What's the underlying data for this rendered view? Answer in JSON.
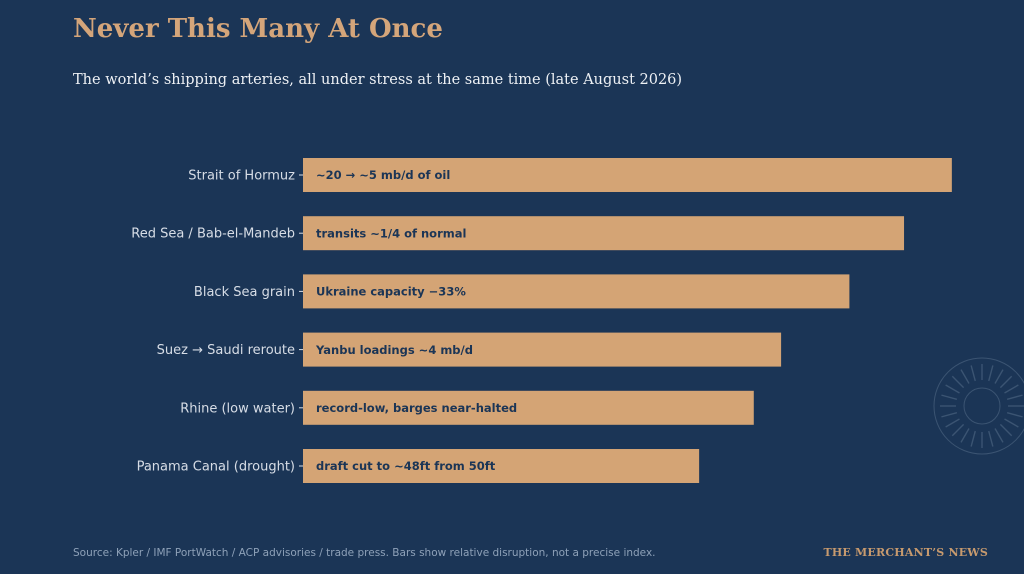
{
  "header": {
    "title": "Never This Many At Once",
    "subtitle": "The world’s shipping arteries, all under stress at the same time (late August 2026)"
  },
  "footer": {
    "source": "Source: Kpler / IMF PortWatch / ACP advisories / trade press. Bars show relative disruption, not a precise index.",
    "brand": "THE MERCHANT’S NEWS"
  },
  "colors": {
    "background": "#1b3556",
    "bar": "#d4a475",
    "bar_text": "#1b3556",
    "category_text": "#d7dde6"
  },
  "chart_data": {
    "type": "bar",
    "orientation": "horizontal",
    "categories": [
      "Strait of Hormuz",
      "Red Sea / Bab-el-Mandeb",
      "Black Sea grain",
      "Suez → Saudi reroute",
      "Rhine (low water)",
      "Panama Canal (drought)"
    ],
    "values": [
      95,
      88,
      80,
      70,
      66,
      58
    ],
    "bar_labels": [
      "~20 → ~5 mb/d of oil",
      "transits ~1/4 of normal",
      "Ukraine capacity −33%",
      "Yanbu loadings ~4 mb/d",
      "record-low, barges near-halted",
      "draft cut to ~48ft from 50ft"
    ],
    "xlim": [
      0,
      100
    ],
    "grid": false,
    "legend": "none"
  }
}
